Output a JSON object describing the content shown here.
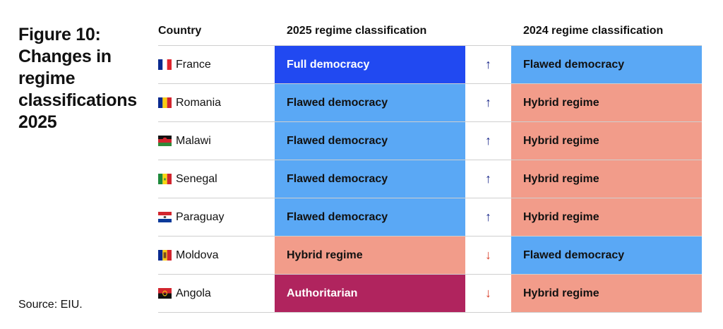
{
  "figure": {
    "title": "Figure 10: Changes in regime classifications 2025",
    "source": "Source: EIU."
  },
  "colors": {
    "full_democracy": "#2149f1",
    "flawed_democracy": "#5aa8f5",
    "hybrid_regime": "#f29c8a",
    "authoritarian": "#b0245e",
    "arrow_up": "#1d2a8c",
    "arrow_down": "#d9402b"
  },
  "chart_data": {
    "type": "table",
    "columns": [
      "Country",
      "2025 regime classification",
      "",
      "2024 regime classification"
    ],
    "rows": [
      {
        "country": "France",
        "flag": "france-flag-icon",
        "c2025": "Full democracy",
        "c2025_key": "full_democracy",
        "change": "up",
        "arrow": "↑",
        "c2024": "Flawed democracy",
        "c2024_key": "flawed_democracy"
      },
      {
        "country": "Romania",
        "flag": "romania-flag-icon",
        "c2025": "Flawed democracy",
        "c2025_key": "flawed_democracy",
        "change": "up",
        "arrow": "↑",
        "c2024": "Hybrid regime",
        "c2024_key": "hybrid_regime"
      },
      {
        "country": "Malawi",
        "flag": "malawi-flag-icon",
        "c2025": "Flawed democracy",
        "c2025_key": "flawed_democracy",
        "change": "up",
        "arrow": "↑",
        "c2024": "Hybrid regime",
        "c2024_key": "hybrid_regime"
      },
      {
        "country": "Senegal",
        "flag": "senegal-flag-icon",
        "c2025": "Flawed democracy",
        "c2025_key": "flawed_democracy",
        "change": "up",
        "arrow": "↑",
        "c2024": "Hybrid regime",
        "c2024_key": "hybrid_regime"
      },
      {
        "country": "Paraguay",
        "flag": "paraguay-flag-icon",
        "c2025": "Flawed democracy",
        "c2025_key": "flawed_democracy",
        "change": "up",
        "arrow": "↑",
        "c2024": "Hybrid regime",
        "c2024_key": "hybrid_regime"
      },
      {
        "country": "Moldova",
        "flag": "moldova-flag-icon",
        "c2025": "Hybrid regime",
        "c2025_key": "hybrid_regime",
        "change": "down",
        "arrow": "↓",
        "c2024": "Flawed democracy",
        "c2024_key": "flawed_democracy"
      },
      {
        "country": "Angola",
        "flag": "angola-flag-icon",
        "c2025": "Authoritarian",
        "c2025_key": "authoritarian",
        "change": "down",
        "arrow": "↓",
        "c2024": "Hybrid regime",
        "c2024_key": "hybrid_regime"
      }
    ]
  }
}
